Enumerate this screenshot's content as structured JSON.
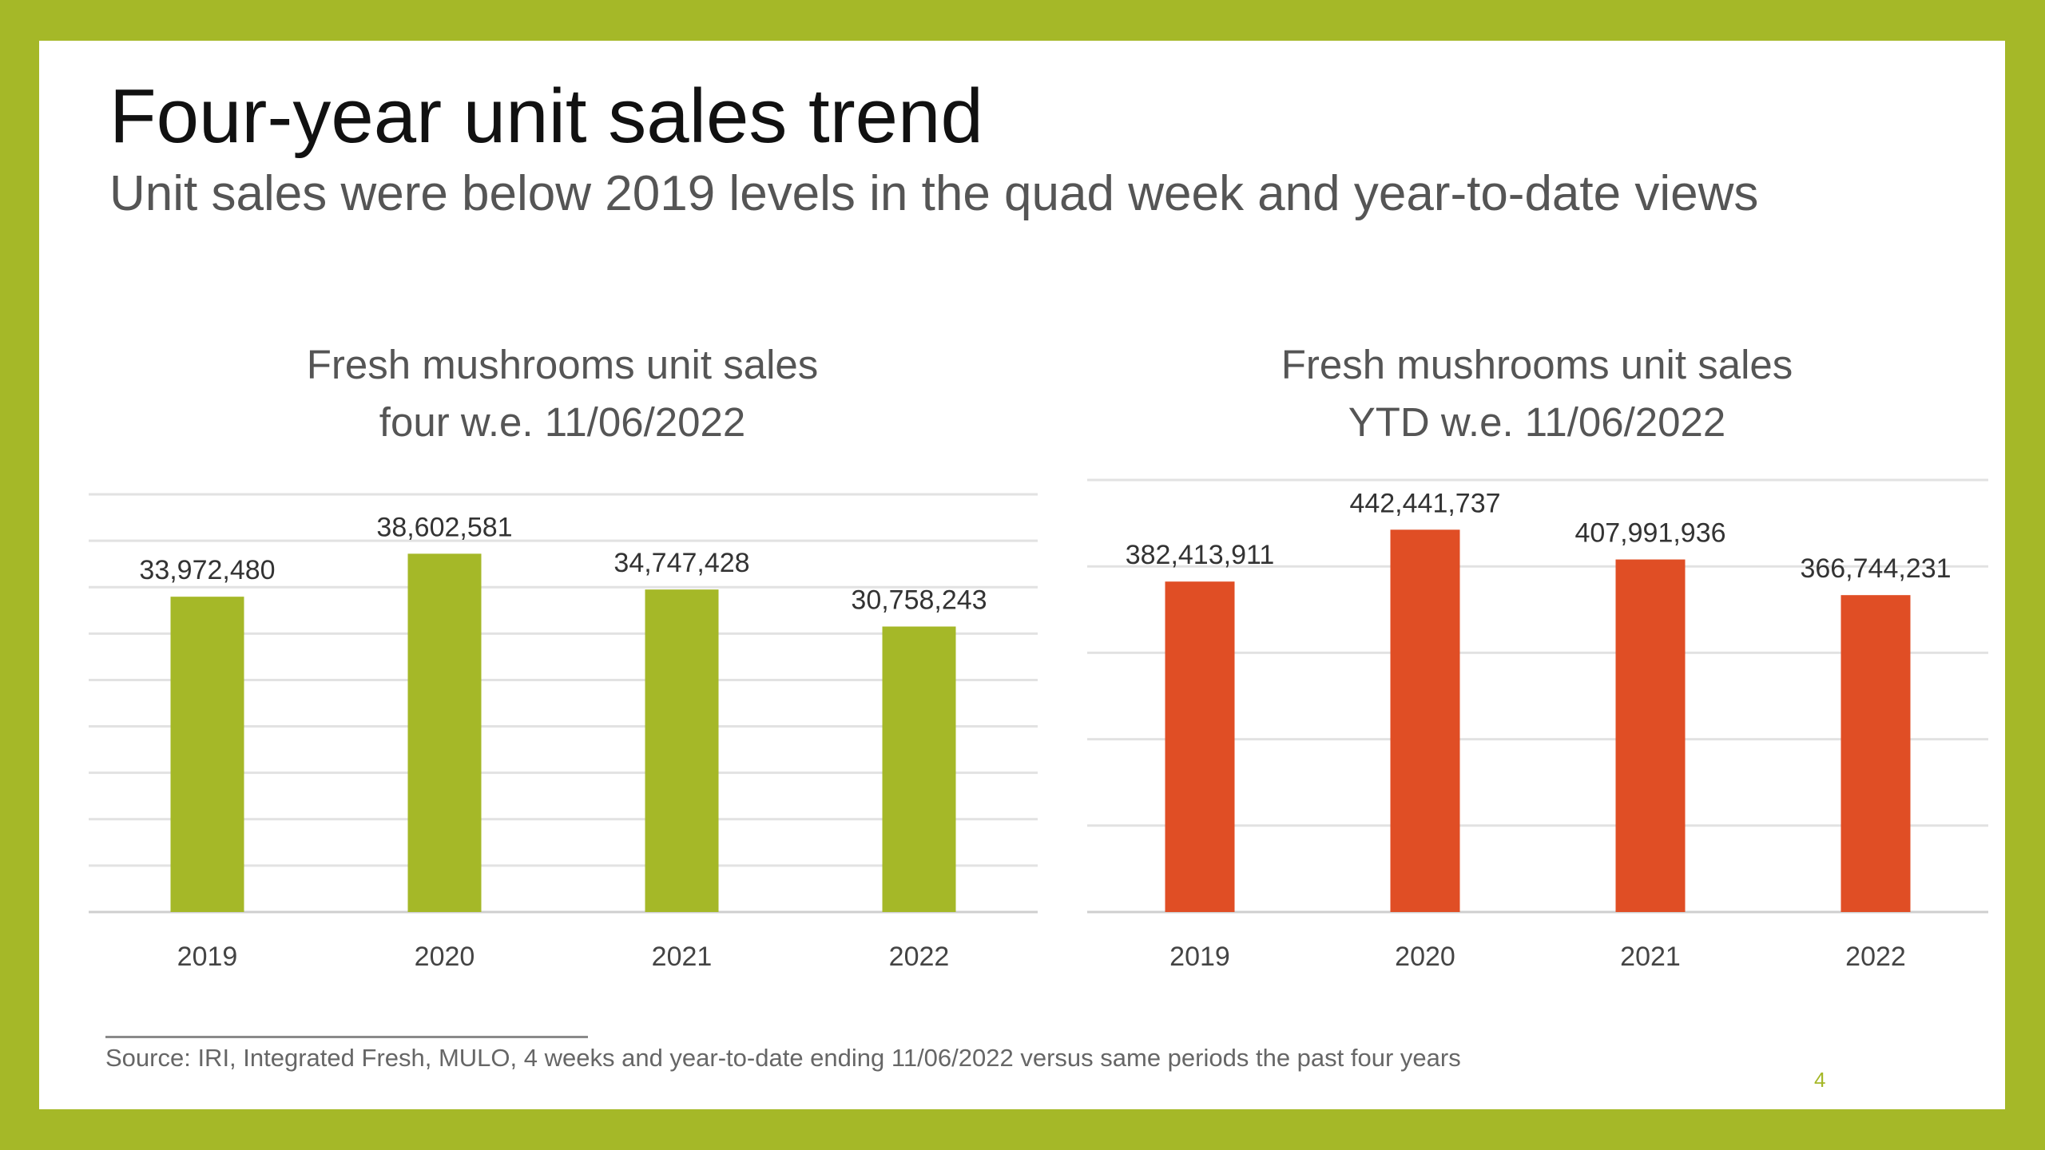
{
  "slide": {
    "title": "Four-year unit sales trend",
    "subtitle": "Unit sales were below 2019 levels in the quad week and year-to-date views",
    "source": "Source: IRI, Integrated Fresh, MULO, 4 weeks and year-to-date ending 11/06/2022 versus same periods the past four years",
    "page_number": "4",
    "frame_color": "#a5b828",
    "background_color": "#ffffff"
  },
  "chart_data": [
    {
      "type": "bar",
      "title": "Fresh mushrooms unit sales",
      "subtitle": "four w.e. 11/06/2022",
      "xlabel": "",
      "ylabel": "",
      "categories": [
        "2019",
        "2020",
        "2021",
        "2022"
      ],
      "values": [
        33972480,
        38602581,
        34747428,
        30758243
      ],
      "value_labels": [
        "33,972,480",
        "38,602,581",
        "34,747,428",
        "30,758,243"
      ],
      "ylim": [
        0,
        45000000
      ],
      "grid": true,
      "legend": "none",
      "color": "#a5b828"
    },
    {
      "type": "bar",
      "title": "Fresh mushrooms unit sales",
      "subtitle": "YTD w.e. 11/06/2022",
      "xlabel": "",
      "ylabel": "",
      "categories": [
        "2019",
        "2020",
        "2021",
        "2022"
      ],
      "values": [
        382413911,
        442441737,
        407991936,
        366744231
      ],
      "value_labels": [
        "382,413,911",
        "442,441,737",
        "407,991,936",
        "366,744,231"
      ],
      "ylim": [
        0,
        500000000
      ],
      "grid": true,
      "legend": "none",
      "color": "#e04e25"
    }
  ]
}
